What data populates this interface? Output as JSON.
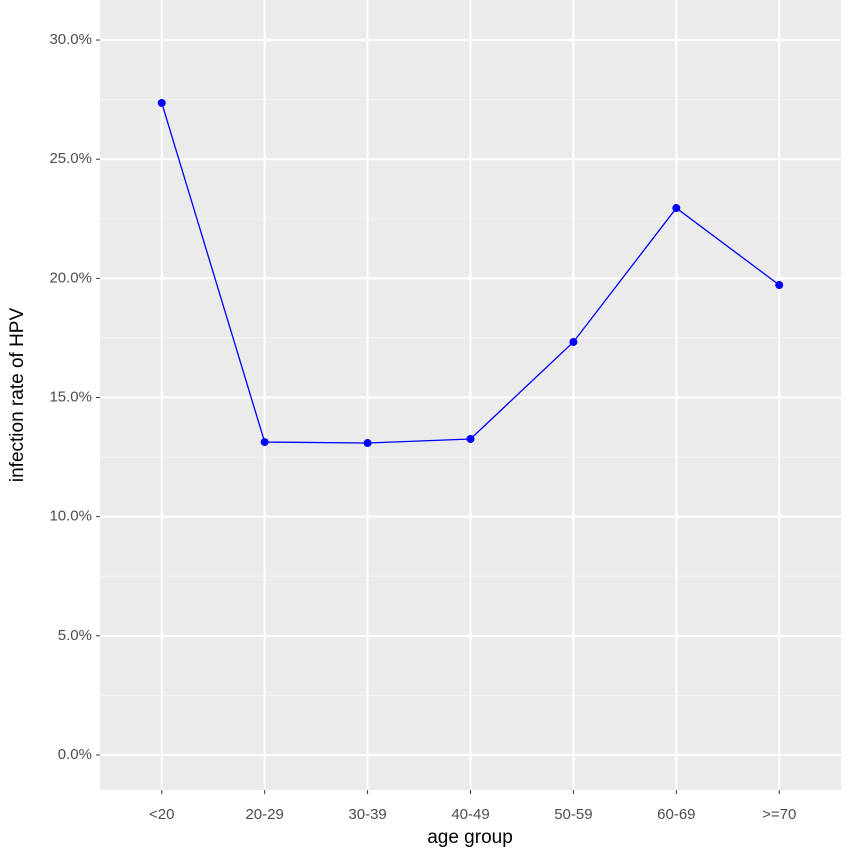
{
  "chart_data": {
    "type": "line",
    "x_label": "age group",
    "y_label": "infection rate of HPV",
    "categories": [
      "<20",
      "20-29",
      "30-39",
      "40-49",
      "50-59",
      "60-69",
      ">=70"
    ],
    "values": [
      27.36,
      13.13,
      13.09,
      13.26,
      17.33,
      22.95,
      19.72
    ],
    "color": "#0000ff",
    "ylim": [
      -1.47,
      31.68
    ],
    "yticks": [
      {
        "value": 0,
        "label": "0.0%"
      },
      {
        "value": 5,
        "label": "5.0%"
      },
      {
        "value": 10,
        "label": "10.0%"
      },
      {
        "value": 15,
        "label": "15.0%"
      },
      {
        "value": 20,
        "label": "20.0%"
      },
      {
        "value": 25,
        "label": "25.0%"
      },
      {
        "value": 30,
        "label": "30.0%"
      }
    ],
    "minor_yticks": [
      2.5,
      7.5,
      12.5,
      17.5,
      22.5,
      27.5
    ],
    "grid": true
  }
}
